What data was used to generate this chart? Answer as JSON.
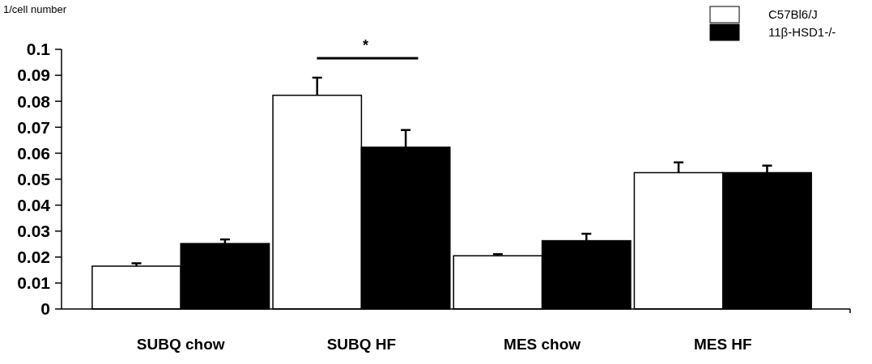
{
  "chart_data": {
    "type": "bar",
    "ylabel": "1/cell number",
    "categories": [
      "SUBQ chow",
      "SUBQ HF",
      "MES chow",
      "MES HF"
    ],
    "series": [
      {
        "name": "C57Bl6/J",
        "color": "#ffffff",
        "values": [
          0.0165,
          0.0823,
          0.0205,
          0.0525
        ],
        "errors": [
          [
            0.0165,
            0.0176
          ],
          [
            0.0823,
            0.0891
          ],
          [
            0.0205,
            0.0211
          ],
          [
            0.0525,
            0.0565
          ]
        ]
      },
      {
        "name": "11β-HSD1-/-",
        "color": "#000000",
        "values": [
          0.0252,
          0.0623,
          0.0263,
          0.0525
        ],
        "errors": [
          [
            0.0252,
            0.0268
          ],
          [
            0.0623,
            0.0689
          ],
          [
            0.0263,
            0.029
          ],
          [
            0.0525,
            0.0552
          ]
        ]
      }
    ],
    "ylim": [
      0,
      0.1
    ],
    "yticks": [
      0,
      0.01,
      0.02,
      0.03,
      0.04,
      0.05,
      0.06,
      0.07,
      0.08,
      0.09,
      0.1
    ],
    "annotations": [
      "*"
    ],
    "legend": "top right",
    "grid": false
  }
}
